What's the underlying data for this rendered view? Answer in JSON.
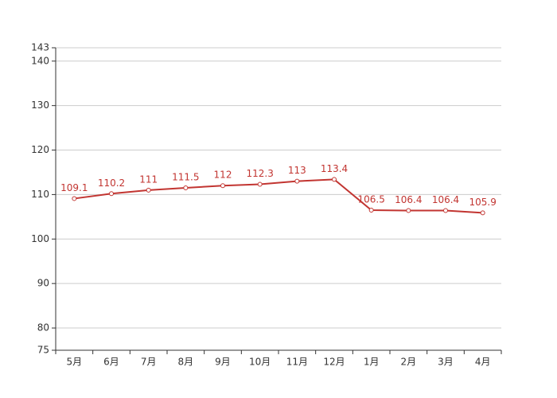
{
  "chart_data": {
    "type": "line",
    "categories": [
      "5月",
      "6月",
      "7月",
      "8月",
      "9月",
      "10月",
      "11月",
      "12月",
      "1月",
      "2月",
      "3月",
      "4月"
    ],
    "series": [
      {
        "color": "#c23531",
        "values": [
          109.1,
          110.2,
          111,
          111.5,
          112,
          112.3,
          113,
          113.4,
          106.5,
          106.4,
          106.4,
          105.9
        ]
      }
    ],
    "ylim": [
      75,
      143
    ],
    "yticks": [
      75,
      80,
      90,
      100,
      110,
      120,
      130,
      140,
      143
    ],
    "grid": true
  }
}
